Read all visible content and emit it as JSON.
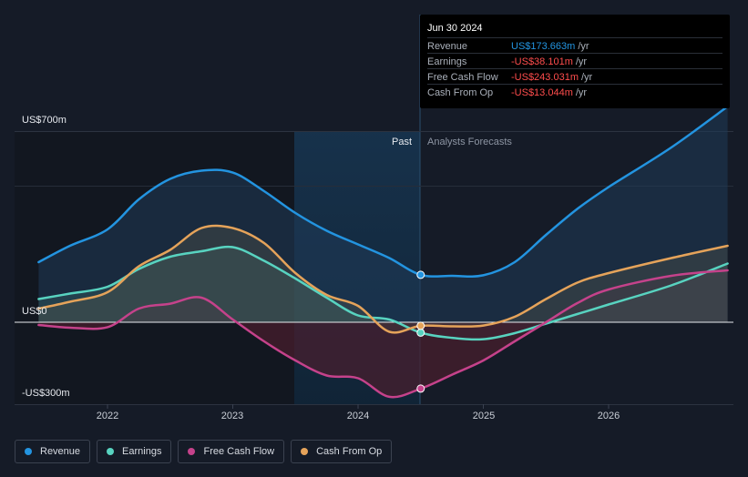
{
  "chart_data": {
    "type": "area",
    "y_axis": {
      "unit": "US$m",
      "min": -300,
      "max": 700,
      "tick_labels": [
        "US$700m",
        "US$0",
        "-US$300m"
      ]
    },
    "x_axis": {
      "tick_labels": [
        "2022",
        "2023",
        "2024",
        "2025",
        "2026"
      ]
    },
    "divider": {
      "past_label": "Past",
      "forecast_label": "Analysts Forecasts",
      "date": 2024.5
    },
    "series": [
      {
        "name": "Revenue",
        "color": "#2394e0",
        "points": [
          [
            2021.45,
            220
          ],
          [
            2021.7,
            280
          ],
          [
            2022.0,
            340
          ],
          [
            2022.25,
            450
          ],
          [
            2022.5,
            525
          ],
          [
            2022.75,
            555
          ],
          [
            2023.0,
            548
          ],
          [
            2023.25,
            480
          ],
          [
            2023.5,
            400
          ],
          [
            2023.75,
            335
          ],
          [
            2024.0,
            285
          ],
          [
            2024.25,
            235
          ],
          [
            2024.5,
            173.663
          ],
          [
            2024.75,
            170
          ],
          [
            2025.0,
            172
          ],
          [
            2025.25,
            220
          ],
          [
            2025.5,
            320
          ],
          [
            2025.75,
            415
          ],
          [
            2026.0,
            495
          ],
          [
            2026.5,
            640
          ],
          [
            2026.95,
            790
          ]
        ]
      },
      {
        "name": "Earnings",
        "color": "#58d3c0",
        "points": [
          [
            2021.45,
            85
          ],
          [
            2021.7,
            105
          ],
          [
            2022.0,
            130
          ],
          [
            2022.25,
            195
          ],
          [
            2022.5,
            240
          ],
          [
            2022.75,
            260
          ],
          [
            2023.0,
            275
          ],
          [
            2023.25,
            225
          ],
          [
            2023.5,
            160
          ],
          [
            2023.75,
            90
          ],
          [
            2024.0,
            25
          ],
          [
            2024.25,
            10
          ],
          [
            2024.5,
            -38.101
          ],
          [
            2024.75,
            -57
          ],
          [
            2025.0,
            -62
          ],
          [
            2025.25,
            -40
          ],
          [
            2025.5,
            -5
          ],
          [
            2025.75,
            30
          ],
          [
            2026.0,
            65
          ],
          [
            2026.5,
            135
          ],
          [
            2026.95,
            215
          ]
        ]
      },
      {
        "name": "Free Cash Flow",
        "color": "#c5428b",
        "points": [
          [
            2021.45,
            -10
          ],
          [
            2021.7,
            -20
          ],
          [
            2022.0,
            -18
          ],
          [
            2022.25,
            50
          ],
          [
            2022.5,
            68
          ],
          [
            2022.75,
            90
          ],
          [
            2023.0,
            10
          ],
          [
            2023.25,
            -70
          ],
          [
            2023.5,
            -140
          ],
          [
            2023.75,
            -195
          ],
          [
            2024.0,
            -205
          ],
          [
            2024.25,
            -273
          ],
          [
            2024.5,
            -243.031
          ],
          [
            2024.75,
            -192
          ],
          [
            2025.0,
            -140
          ],
          [
            2025.25,
            -70
          ],
          [
            2025.5,
            0
          ],
          [
            2025.75,
            70
          ],
          [
            2026.0,
            120
          ],
          [
            2026.5,
            170
          ],
          [
            2026.95,
            190
          ]
        ]
      },
      {
        "name": "Cash From Op",
        "color": "#e5a35a",
        "points": [
          [
            2021.45,
            50
          ],
          [
            2021.7,
            75
          ],
          [
            2022.0,
            110
          ],
          [
            2022.25,
            205
          ],
          [
            2022.5,
            265
          ],
          [
            2022.75,
            345
          ],
          [
            2023.0,
            345
          ],
          [
            2023.25,
            290
          ],
          [
            2023.5,
            180
          ],
          [
            2023.75,
            100
          ],
          [
            2024.0,
            60
          ],
          [
            2024.25,
            -35
          ],
          [
            2024.5,
            -13.044
          ],
          [
            2024.75,
            -15
          ],
          [
            2025.0,
            -12
          ],
          [
            2025.25,
            20
          ],
          [
            2025.5,
            85
          ],
          [
            2025.75,
            145
          ],
          [
            2026.0,
            180
          ],
          [
            2026.5,
            235
          ],
          [
            2026.95,
            280
          ]
        ]
      }
    ]
  },
  "tooltip": {
    "date": "Jun 30 2024",
    "rows": [
      {
        "name": "Revenue",
        "value": "US$173.663m",
        "unit": "/yr",
        "color": "#2394e0"
      },
      {
        "name": "Earnings",
        "value": "-US$38.101m",
        "unit": "/yr",
        "color": "#ff4d4d"
      },
      {
        "name": "Free Cash Flow",
        "value": "-US$243.031m",
        "unit": "/yr",
        "color": "#ff4d4d"
      },
      {
        "name": "Cash From Op",
        "value": "-US$13.044m",
        "unit": "/yr",
        "color": "#ff4d4d"
      }
    ]
  },
  "legend": [
    {
      "label": "Revenue",
      "color": "#2394e0"
    },
    {
      "label": "Earnings",
      "color": "#58d3c0"
    },
    {
      "label": "Free Cash Flow",
      "color": "#c5428b"
    },
    {
      "label": "Cash From Op",
      "color": "#e5a35a"
    }
  ]
}
